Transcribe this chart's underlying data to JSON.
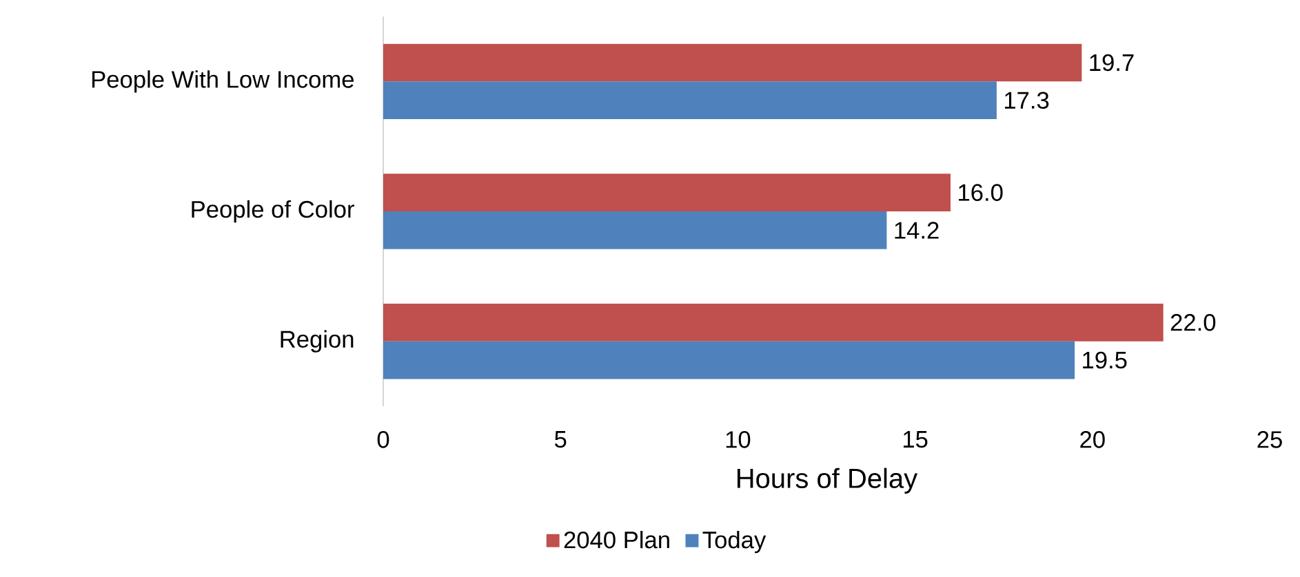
{
  "chart_data": {
    "type": "bar",
    "orientation": "horizontal",
    "xlabel": "Hours of Delay",
    "categories": [
      "People With Low Income",
      "People of Color",
      "Region"
    ],
    "series": [
      {
        "name": "2040 Plan",
        "color": "#c0504d",
        "values": [
          19.7,
          16.0,
          22.0
        ],
        "value_labels": [
          "19.7",
          "16.0",
          "22.0"
        ]
      },
      {
        "name": "Today",
        "color": "#4f81bd",
        "values": [
          17.3,
          14.2,
          19.5
        ],
        "value_labels": [
          "17.3",
          "14.2",
          "19.5"
        ]
      }
    ],
    "xlim": [
      0,
      25
    ],
    "xticks": [
      0,
      5,
      10,
      15,
      20,
      25
    ],
    "legend": "bottom",
    "grid": false
  }
}
